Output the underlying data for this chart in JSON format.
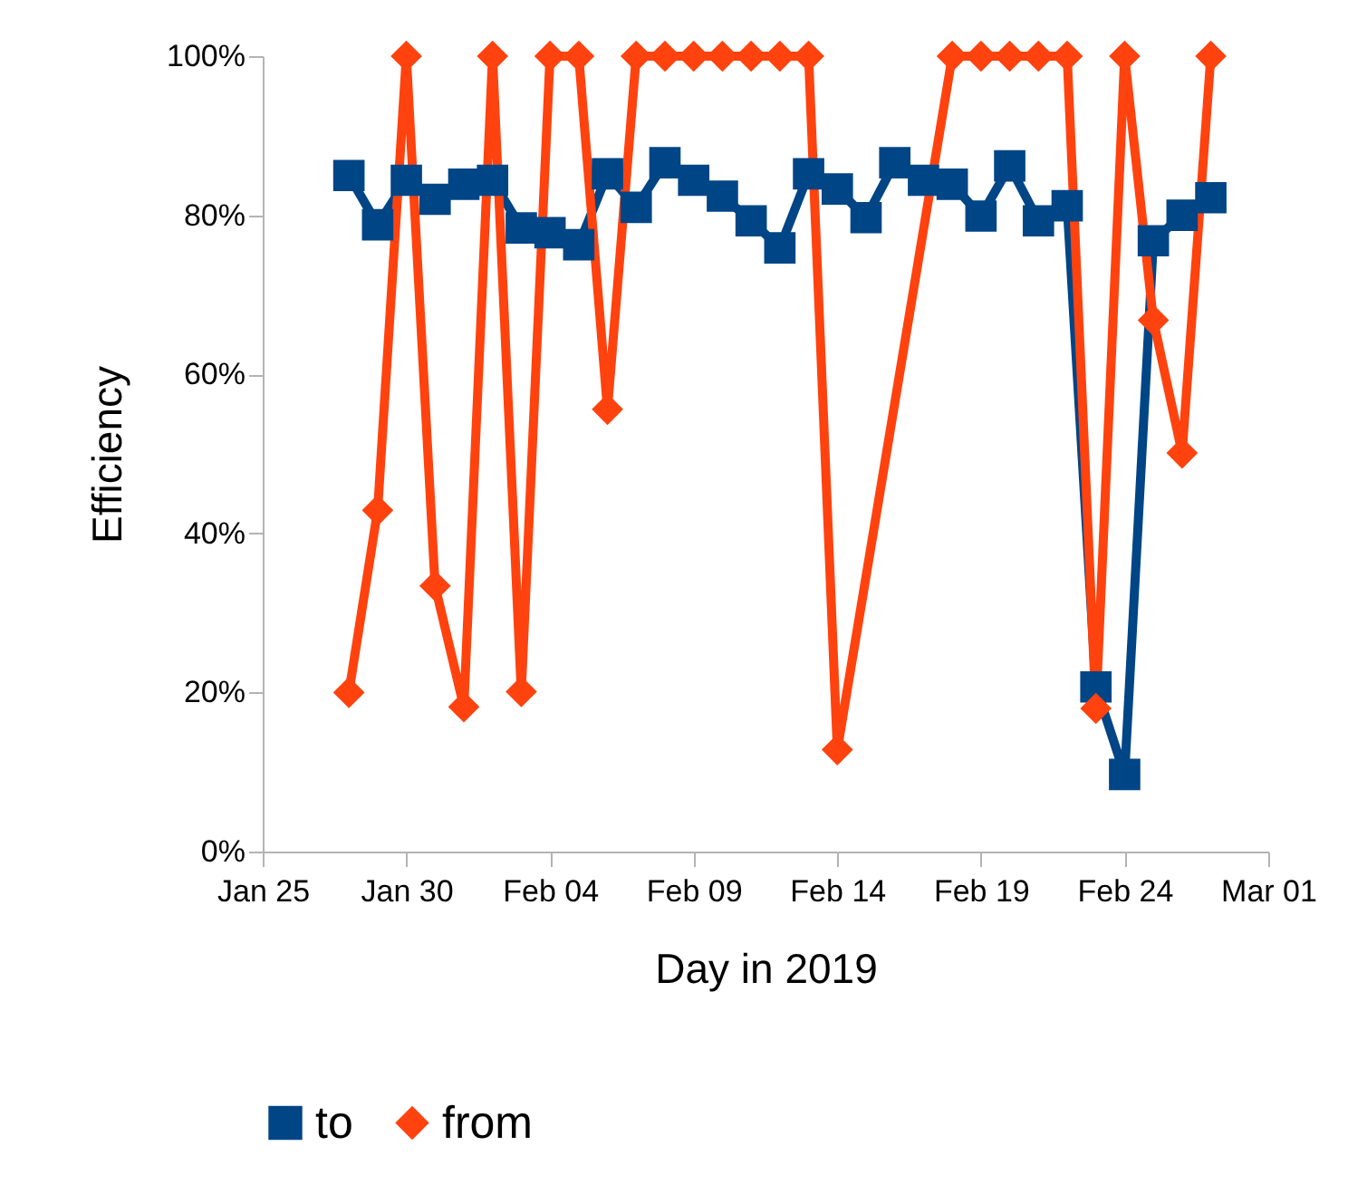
{
  "chart_data": {
    "type": "line",
    "xlabel": "Day in 2019",
    "ylabel": "Efficiency",
    "legend": "bottom",
    "grid": false,
    "line_style": "solid",
    "x": [
      "2019-01-28",
      "2019-01-29",
      "2019-01-30",
      "2019-01-31",
      "2019-02-01",
      "2019-02-02",
      "2019-02-03",
      "2019-02-04",
      "2019-02-05",
      "2019-02-06",
      "2019-02-07",
      "2019-02-08",
      "2019-02-09",
      "2019-02-10",
      "2019-02-11",
      "2019-02-12",
      "2019-02-13",
      "2019-02-14",
      "2019-02-15",
      "2019-02-16",
      "2019-02-17",
      "2019-02-18",
      "2019-02-19",
      "2019-02-20",
      "2019-02-21",
      "2019-02-22",
      "2019-02-23",
      "2019-02-24",
      "2019-02-25",
      "2019-02-26",
      "2019-02-27"
    ],
    "series": [
      {
        "name": "to",
        "color": "#004586",
        "marker": "square",
        "values": [
          85.0,
          78.8,
          84.4,
          82.0,
          83.9,
          84.4,
          78.4,
          77.8,
          76.3,
          85.2,
          81.0,
          86.6,
          84.4,
          82.4,
          79.3,
          75.9,
          85.2,
          83.3,
          79.7,
          86.6,
          84.4,
          83.9,
          79.9,
          86.2,
          79.3,
          81.2,
          20.7,
          9.7,
          76.8,
          80.0,
          82.2
        ]
      },
      {
        "name": "from",
        "color": "#ff420e",
        "marker": "diamond",
        "x": [
          "2019-01-28",
          "2019-01-29",
          "2019-01-30",
          "2019-01-31",
          "2019-02-01",
          "2019-02-02",
          "2019-02-03",
          "2019-02-04",
          "2019-02-05",
          "2019-02-06",
          "2019-02-07",
          "2019-02-08",
          "2019-02-09",
          "2019-02-10",
          "2019-02-11",
          "2019-02-12",
          "2019-02-13",
          "2019-02-14",
          "2019-02-18",
          "2019-02-19",
          "2019-02-20",
          "2019-02-21",
          "2019-02-22",
          "2019-02-23",
          "2019-02-24",
          "2019-02-25",
          "2019-02-26",
          "2019-02-27"
        ],
        "values": [
          20,
          42.9,
          100,
          33.4,
          18.2,
          100,
          20.1,
          100,
          100,
          55.6,
          100,
          100,
          100,
          100,
          100,
          100,
          100,
          12.8,
          100,
          100,
          100,
          100,
          100,
          18,
          100,
          66.8,
          50.1,
          100
        ]
      }
    ],
    "xlim": [
      "2019-01-25",
      "2019-03-01"
    ],
    "xticks": [
      {
        "value": "2019-01-25",
        "label": "Jan 25"
      },
      {
        "value": "2019-01-30",
        "label": "Jan 30"
      },
      {
        "value": "2019-02-04",
        "label": "Feb 04"
      },
      {
        "value": "2019-02-09",
        "label": "Feb 09"
      },
      {
        "value": "2019-02-14",
        "label": "Feb 14"
      },
      {
        "value": "2019-02-19",
        "label": "Feb 19"
      },
      {
        "value": "2019-02-24",
        "label": "Feb 24"
      },
      {
        "value": "2019-03-01",
        "label": "Mar 01"
      }
    ],
    "ylim": [
      0,
      100
    ],
    "yticks": [
      {
        "value": 0,
        "label": "0%"
      },
      {
        "value": 20,
        "label": "20%"
      },
      {
        "value": 40,
        "label": "40%"
      },
      {
        "value": 60,
        "label": "60%"
      },
      {
        "value": 80,
        "label": "80%"
      },
      {
        "value": 100,
        "label": "100%"
      }
    ]
  }
}
